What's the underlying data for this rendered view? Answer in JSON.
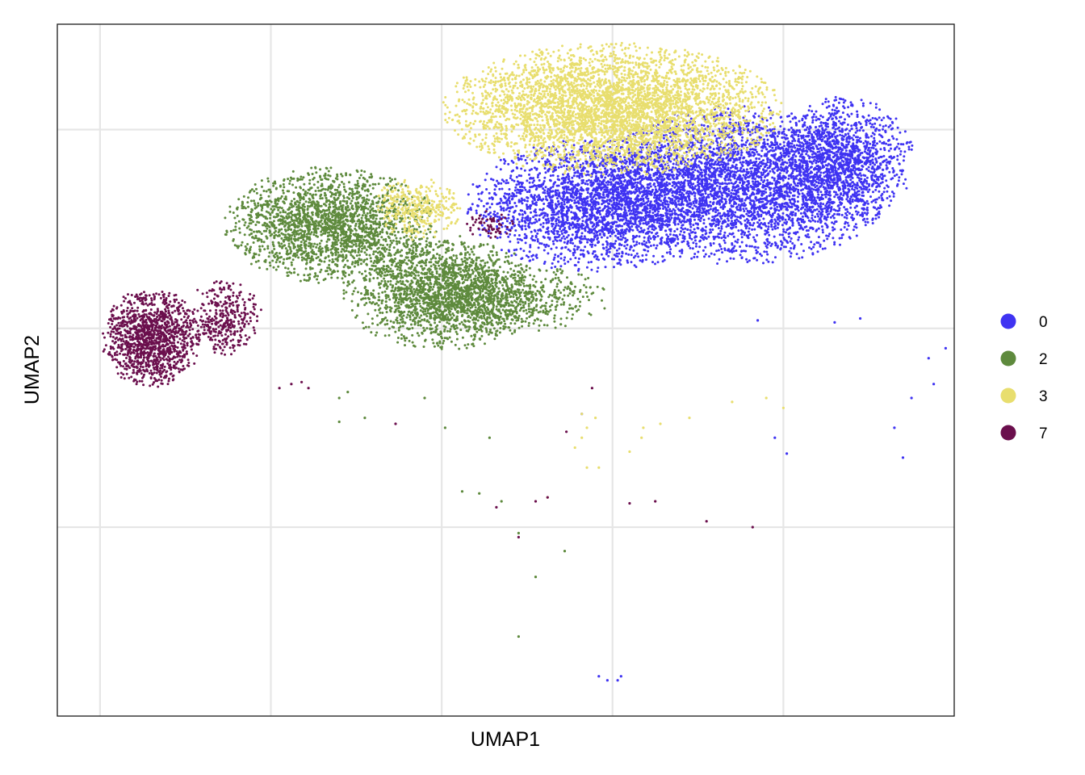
{
  "chart_data": {
    "type": "scatter",
    "title": "",
    "xlabel": "UMAP1",
    "ylabel": "UMAP2",
    "xlim": [
      -0.25,
      5.0
    ],
    "ylim": [
      -1.95,
      1.53
    ],
    "x_gridlines": [
      0,
      1,
      2,
      3,
      4
    ],
    "y_gridlines": [
      -1,
      0,
      1
    ],
    "tick_labels_visible": false,
    "grid": true,
    "legend_position": "right",
    "series": [
      {
        "name": "0",
        "color": "#3F33F2",
        "clusters": [
          {
            "cx": 2.9,
            "cy": 0.62,
            "rx": 0.72,
            "ry": 0.32,
            "n": 2600
          },
          {
            "cx": 3.75,
            "cy": 0.72,
            "rx": 0.85,
            "ry": 0.38,
            "n": 3600
          },
          {
            "cx": 4.35,
            "cy": 0.85,
            "rx": 0.4,
            "ry": 0.3,
            "n": 1200
          }
        ],
        "points": [
          [
            2.92,
            -1.75
          ],
          [
            2.97,
            -1.77
          ],
          [
            3.03,
            -1.77
          ],
          [
            3.05,
            -1.75
          ],
          [
            3.95,
            -0.55
          ],
          [
            4.02,
            -0.63
          ],
          [
            4.65,
            -0.5
          ],
          [
            4.7,
            -0.65
          ],
          [
            4.75,
            -0.35
          ],
          [
            4.85,
            -0.15
          ],
          [
            4.88,
            -0.28
          ],
          [
            4.95,
            -0.1
          ],
          [
            4.3,
            0.03
          ],
          [
            4.45,
            0.05
          ],
          [
            2.82,
            -0.43
          ],
          [
            3.85,
            0.04
          ]
        ]
      },
      {
        "name": "2",
        "color": "#5E8A3D",
        "clusters": [
          {
            "cx": 1.35,
            "cy": 0.52,
            "rx": 0.6,
            "ry": 0.28,
            "n": 2100
          },
          {
            "cx": 2.0,
            "cy": 0.18,
            "rx": 0.55,
            "ry": 0.28,
            "n": 1800
          },
          {
            "cx": 2.35,
            "cy": 0.15,
            "rx": 0.6,
            "ry": 0.18,
            "n": 700
          }
        ],
        "points": [
          [
            2.02,
            -0.5
          ],
          [
            2.12,
            -0.82
          ],
          [
            2.22,
            -0.83
          ],
          [
            2.28,
            -0.55
          ],
          [
            2.35,
            -0.87
          ],
          [
            2.45,
            -1.03
          ],
          [
            2.55,
            -1.25
          ],
          [
            2.45,
            -1.55
          ],
          [
            2.72,
            -1.12
          ],
          [
            1.9,
            -0.35
          ],
          [
            1.55,
            -0.45
          ],
          [
            1.45,
            -0.32
          ],
          [
            1.4,
            -0.35
          ],
          [
            1.4,
            -0.47
          ]
        ]
      },
      {
        "name": "3",
        "color": "#E8DE6E",
        "clusters": [
          {
            "cx": 3.0,
            "cy": 1.1,
            "rx": 0.95,
            "ry": 0.32,
            "n": 4200
          },
          {
            "cx": 1.85,
            "cy": 0.6,
            "rx": 0.25,
            "ry": 0.15,
            "n": 350
          }
        ],
        "points": [
          [
            2.82,
            -0.43
          ],
          [
            2.9,
            -0.45
          ],
          [
            2.85,
            -0.5
          ],
          [
            2.78,
            -0.6
          ],
          [
            3.1,
            -0.62
          ],
          [
            3.17,
            -0.55
          ],
          [
            3.18,
            -0.5
          ],
          [
            3.28,
            -0.48
          ],
          [
            3.45,
            -0.45
          ],
          [
            3.7,
            -0.37
          ],
          [
            3.9,
            -0.35
          ],
          [
            4.0,
            -0.4
          ],
          [
            2.85,
            -0.7
          ],
          [
            2.92,
            -0.7
          ],
          [
            2.62,
            -0.85
          ],
          [
            2.82,
            -0.55
          ]
        ]
      },
      {
        "name": "7",
        "color": "#6B0F4D",
        "clusters": [
          {
            "cx": 0.3,
            "cy": -0.05,
            "rx": 0.28,
            "ry": 0.24,
            "n": 1250
          },
          {
            "cx": 0.72,
            "cy": 0.05,
            "rx": 0.22,
            "ry": 0.18,
            "n": 350
          },
          {
            "cx": 2.3,
            "cy": 0.52,
            "rx": 0.15,
            "ry": 0.08,
            "n": 60
          }
        ],
        "points": [
          [
            1.05,
            -0.3
          ],
          [
            1.12,
            -0.28
          ],
          [
            1.22,
            -0.3
          ],
          [
            1.18,
            -0.27
          ],
          [
            1.73,
            -0.48
          ],
          [
            2.88,
            -0.3
          ],
          [
            2.73,
            -0.52
          ],
          [
            2.62,
            -0.85
          ],
          [
            3.25,
            -0.87
          ],
          [
            2.32,
            -0.9
          ],
          [
            3.1,
            -0.88
          ],
          [
            3.55,
            -0.97
          ],
          [
            3.82,
            -1.0
          ],
          [
            2.45,
            -1.05
          ],
          [
            2.55,
            -0.87
          ]
        ]
      }
    ]
  }
}
